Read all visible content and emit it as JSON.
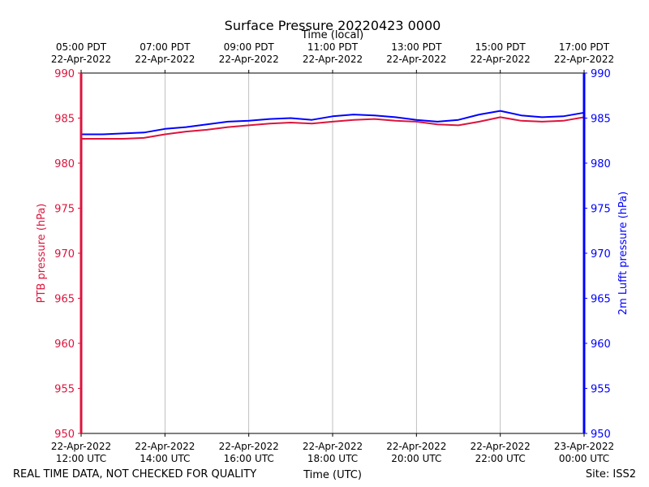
{
  "chart_data": {
    "type": "line",
    "title": "Surface Pressure 20220423 0000",
    "top_axis_label": "Time (local)",
    "xlabel": "Time (UTC)",
    "ylabel_left": "PTB pressure (hPa)",
    "ylabel_right": "2m Lufft pressure (hPa)",
    "ylim": [
      950,
      990
    ],
    "yticks": [
      950,
      955,
      960,
      965,
      970,
      975,
      980,
      985,
      990
    ],
    "xlim_utc_hours": [
      12,
      24
    ],
    "x_unit": "hours UTC, 22-Apr-2022",
    "bottom_ticks": [
      {
        "x": 12,
        "line1": "22-Apr-2022",
        "line2": "12:00 UTC"
      },
      {
        "x": 14,
        "line1": "22-Apr-2022",
        "line2": "14:00 UTC"
      },
      {
        "x": 16,
        "line1": "22-Apr-2022",
        "line2": "16:00 UTC"
      },
      {
        "x": 18,
        "line1": "22-Apr-2022",
        "line2": "18:00 UTC"
      },
      {
        "x": 20,
        "line1": "22-Apr-2022",
        "line2": "20:00 UTC"
      },
      {
        "x": 22,
        "line1": "22-Apr-2022",
        "line2": "22:00 UTC"
      },
      {
        "x": 24,
        "line1": "23-Apr-2022",
        "line2": "00:00 UTC"
      }
    ],
    "top_ticks": [
      {
        "x": 12,
        "line1": "05:00 PDT",
        "line2": "22-Apr-2022"
      },
      {
        "x": 14,
        "line1": "07:00 PDT",
        "line2": "22-Apr-2022"
      },
      {
        "x": 16,
        "line1": "09:00 PDT",
        "line2": "22-Apr-2022"
      },
      {
        "x": 18,
        "line1": "11:00 PDT",
        "line2": "22-Apr-2022"
      },
      {
        "x": 20,
        "line1": "13:00 PDT",
        "line2": "22-Apr-2022"
      },
      {
        "x": 22,
        "line1": "15:00 PDT",
        "line2": "22-Apr-2022"
      },
      {
        "x": 24,
        "line1": "17:00 PDT",
        "line2": "22-Apr-2022"
      }
    ],
    "grid": "vertical",
    "series": [
      {
        "axis": "left",
        "color": "#dc143c",
        "x": [
          12.0,
          12.5,
          13.0,
          13.5,
          14.0,
          14.5,
          15.0,
          15.5,
          16.0,
          16.5,
          17.0,
          17.5,
          18.0,
          18.5,
          19.0,
          19.5,
          20.0,
          20.5,
          21.0,
          21.5,
          22.0,
          22.5,
          23.0,
          23.5,
          24.0
        ],
        "values": [
          982.7,
          982.7,
          982.7,
          982.8,
          983.2,
          983.5,
          983.7,
          984.0,
          984.2,
          984.4,
          984.5,
          984.4,
          984.6,
          984.8,
          984.9,
          984.7,
          984.6,
          984.3,
          984.2,
          984.6,
          985.1,
          984.7,
          984.6,
          984.7,
          985.1
        ]
      },
      {
        "axis": "right",
        "color": "#0000ff",
        "x": [
          12.0,
          12.5,
          13.0,
          13.5,
          14.0,
          14.5,
          15.0,
          15.5,
          16.0,
          16.5,
          17.0,
          17.5,
          18.0,
          18.5,
          19.0,
          19.5,
          20.0,
          20.5,
          21.0,
          21.5,
          22.0,
          22.5,
          23.0,
          23.5,
          24.0
        ],
        "values": [
          983.2,
          983.2,
          983.3,
          983.4,
          983.8,
          984.0,
          984.3,
          984.6,
          984.7,
          984.9,
          985.0,
          984.8,
          985.2,
          985.4,
          985.3,
          985.1,
          984.8,
          984.6,
          984.8,
          985.4,
          985.8,
          985.3,
          985.1,
          985.2,
          985.6
        ]
      }
    ]
  },
  "footer": {
    "note": "REAL TIME DATA, NOT CHECKED FOR QUALITY",
    "site": "Site: ISS2"
  }
}
